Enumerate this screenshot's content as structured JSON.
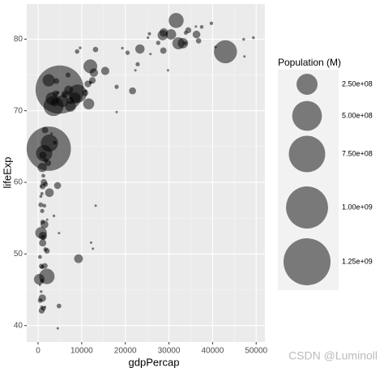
{
  "chart_data": {
    "type": "scatter",
    "x_label": "gdpPercap",
    "y_label": "lifeExp",
    "x": [
      4959,
      2452,
      42952,
      3541,
      9066,
      2606,
      1391,
      2014,
      31656,
      11978,
      3190,
      2442,
      32170,
      5581,
      691,
      8458,
      11606,
      7458,
      278,
      30470,
      33203,
      28570,
      9270,
      23348,
      944,
      7007,
      28821,
      12779,
      1107,
      2602,
      1463,
      15390,
      6223,
      36319,
      1056,
      3820,
      7409,
      4471,
      11416,
      975,
      1091,
      12452,
      21655,
      1593,
      1328,
      28718,
      34435,
      10808,
      824,
      3970,
      1045,
      1545,
      2042,
      4185,
      13172,
      36798,
      620,
      4797,
      470,
      759,
      1217,
      6873,
      47307,
      49357,
      47143,
      39725,
      40676,
      37506,
      36181,
      13206,
      12570,
      12154,
      4513,
      1569,
      18009,
      22316,
      29796,
      12057,
      27538,
      33693,
      33860,
      22833,
      18009,
      20510,
      8948,
      10957,
      1704,
      1042,
      1712,
      1271,
      863,
      943,
      1202,
      3822,
      4519,
      25523,
      25185,
      25768,
      19329,
      9645,
      6025,
      863,
      415,
      926,
      430,
      1441,
      883,
      641,
      753,
      3633,
      706,
      4811,
      2082,
      2281,
      3096,
      1714
    ],
    "values": [
      72.96,
      64.7,
      78.24,
      70.65,
      72.39,
      65.48,
      64.06,
      46.86,
      82.6,
      76.2,
      71.69,
      74.25,
      79.41,
      71.34,
      52.95,
      71.78,
      70.96,
      70.62,
      46.46,
      80.66,
      79.43,
      80.55,
      49.34,
      78.62,
      62.07,
      72.89,
      80.94,
      75.32,
      52.52,
      58.56,
      54.11,
      75.56,
      72.3,
      80.65,
      51.54,
      71.16,
      71.42,
      59.55,
      73.75,
      43.83,
      63.79,
      74.24,
      72.78,
      67.3,
      60.02,
      78.4,
      81.24,
      72.48,
      42.08,
      72.4,
      59.44,
      48.33,
      50.43,
      74.14,
      78.55,
      79.76,
      56.87,
      42.73,
      43.49,
      48.3,
      52.3,
      74.99,
      77.59,
      80.2,
      79.97,
      82.21,
      78.89,
      81.7,
      81.76,
      56.74,
      50.73,
      51.58,
      39.61,
      42.59,
      69.82,
      75.64,
      75.64,
      73.95,
      79.48,
      79.44,
      80.88,
      76.49,
      73.34,
      78.1,
      78.27,
      72.8,
      50.65,
      54.47,
      63.06,
      42.38,
      46.24,
      56.01,
      60.92,
      65.55,
      72.54,
      80.75,
      80.2,
      77.93,
      78.75,
      78.78,
      72.24,
      42.57,
      45.68,
      48.16,
      49.58,
      56.73,
      58.42,
      58.04,
      59.45,
      55.32,
      44.74,
      52.91,
      54.79,
      62.7,
      66.8,
      59.72
    ],
    "sizes": [
      1318683096,
      1110396331,
      301139947,
      223547000,
      190010647,
      169270617,
      150448339,
      135031164,
      127467972,
      108700891,
      91077287,
      85262356,
      82400996,
      80264543,
      76511887,
      71158647,
      69453570,
      65068149,
      64606759,
      61083916,
      60776238,
      58147733,
      43997828,
      49044790,
      47761980,
      44227550,
      40448191,
      40301927,
      38139640,
      42292929,
      35610177,
      38518241,
      33333216,
      33390141,
      29170398,
      33757175,
      28674757,
      27499638,
      26084662,
      31889923,
      28901790,
      24821286,
      27601038,
      23301725,
      22873338,
      23174294,
      20434176,
      22276056,
      19951656,
      20378239,
      19167654,
      18013409,
      17696293,
      19314747,
      16284741,
      16570613,
      12894865,
      12420476,
      12311143,
      13327079,
      14326203,
      13755680,
      2505559,
      4627926,
      4553009,
      6980412,
      4109086,
      7554661,
      301931,
      1454867,
      1639131,
      551201,
      1133066,
      2012649,
      1056608,
      3204897,
      708573,
      6036914,
      10706290,
      10392226,
      9031088,
      10228744,
      9956108,
      10642836,
      11416987,
      1250882,
      10238807,
      12031795,
      12267493,
      11746035,
      8860588,
      9947814,
      8502814,
      9119152,
      6053193,
      6426679,
      4115771,
      2009245,
      3942491,
      4133884,
      9319622,
      6144562,
      3193942,
      9118773,
      8390505,
      8078314,
      5701579,
      4906585,
      1688359,
      3800610,
      4369038,
      2055080,
      496374,
      22211743,
      2874127,
      14131858
    ],
    "color": "#000000",
    "opacity": 0.5,
    "xlim": [
      -2600,
      52000
    ],
    "ylim": [
      37.7,
      84.9
    ],
    "xticks": [
      0,
      10000,
      20000,
      30000,
      40000,
      50000
    ],
    "yticks": [
      40,
      50,
      60,
      70,
      80
    ],
    "x_minor_gridlines": [
      5000,
      15000,
      25000,
      35000,
      45000
    ],
    "y_minor_gridlines": [
      45,
      55,
      65,
      75
    ],
    "grid": true,
    "legend_title": "Population (M)",
    "legend_position": "right",
    "legend_sizes": [
      {
        "value": 250000000,
        "label": "2.50e+08"
      },
      {
        "value": 500000000,
        "label": "5.00e+08"
      },
      {
        "value": 750000000,
        "label": "7.50e+08"
      },
      {
        "value": 1000000000,
        "label": "1.00e+09"
      },
      {
        "value": 1250000000,
        "label": "1.25e+09"
      }
    ],
    "watermark": "CSDN @Luminoll"
  }
}
